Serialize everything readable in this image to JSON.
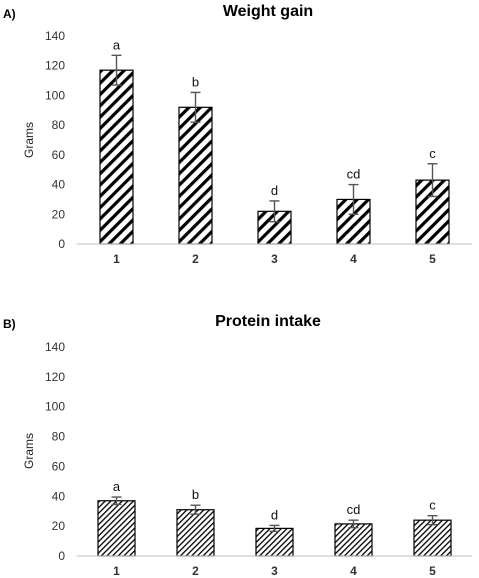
{
  "chart_data": [
    {
      "type": "bar",
      "panel_label": "A)",
      "title": "Weight gain",
      "ylabel": "Grams",
      "xlabel": "",
      "ylim": [
        0,
        140
      ],
      "yticks": [
        0,
        20,
        40,
        60,
        80,
        100,
        120,
        140
      ],
      "categories": [
        "1",
        "2",
        "3",
        "4",
        "5"
      ],
      "values": [
        117,
        92,
        22,
        30,
        43
      ],
      "errors": [
        10,
        10,
        7,
        10,
        11
      ],
      "significance": [
        "a",
        "b",
        "d",
        "cd",
        "c"
      ],
      "pattern": "wide-diagonal-hatch",
      "grid": false
    },
    {
      "type": "bar",
      "panel_label": "B)",
      "title": "Protein intake",
      "ylabel": "Grams",
      "xlabel": "",
      "ylim": [
        0,
        140
      ],
      "yticks": [
        0,
        20,
        40,
        60,
        80,
        100,
        120,
        140
      ],
      "categories": [
        "1",
        "2",
        "3",
        "4",
        "5"
      ],
      "values": [
        37,
        31,
        18.5,
        21.5,
        24
      ],
      "errors": [
        2.5,
        3,
        2,
        2.5,
        3
      ],
      "significance": [
        "a",
        "b",
        "d",
        "cd",
        "c"
      ],
      "pattern": "fine-diagonal-hatch",
      "grid": false
    }
  ]
}
